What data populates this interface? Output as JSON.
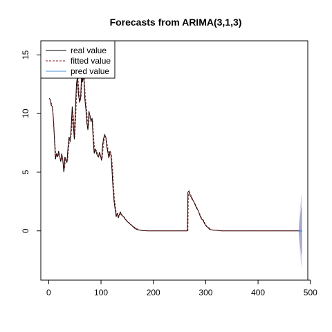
{
  "chart_data": {
    "type": "line",
    "title": "Forecasts from ARIMA(3,1,3)",
    "xlabel": "",
    "ylabel": "",
    "xlim": [
      -15,
      495
    ],
    "ylim": [
      -4.2,
      16.2
    ],
    "xticks": [
      0,
      100,
      200,
      300,
      400,
      500
    ],
    "yticks": [
      0,
      5,
      10,
      15
    ],
    "legend": {
      "position": "top-left",
      "entries": [
        {
          "label": "real value",
          "color": "#000000",
          "style": "solid"
        },
        {
          "label": "fitted value",
          "color": "#8b1a1a",
          "style": "dashed"
        },
        {
          "label": "pred value",
          "color": "#4a90d9",
          "style": "solid"
        }
      ]
    },
    "series": [
      {
        "name": "real value",
        "color": "#000000",
        "x": [
          1,
          3,
          5,
          7,
          9,
          11,
          13,
          15,
          17,
          19,
          21,
          23,
          25,
          27,
          29,
          31,
          33,
          35,
          37,
          39,
          41,
          43,
          45,
          47,
          49,
          51,
          53,
          55,
          57,
          59,
          61,
          63,
          65,
          67,
          69,
          71,
          73,
          75,
          77,
          79,
          81,
          83,
          85,
          87,
          89,
          91,
          93,
          95,
          97,
          99,
          101,
          103,
          105,
          107,
          109,
          111,
          113,
          115,
          117,
          119,
          121,
          123,
          125,
          127,
          129,
          131,
          133,
          135,
          137,
          140,
          143,
          146,
          150,
          155,
          160,
          165,
          170,
          175,
          180,
          190,
          200,
          210,
          220,
          230,
          240,
          250,
          260,
          265,
          266,
          268,
          270,
          272,
          274,
          276,
          278,
          280,
          283,
          286,
          289,
          292,
          295,
          298,
          301,
          304,
          307,
          310,
          315,
          320,
          330,
          340,
          350,
          360,
          370,
          380,
          390,
          400,
          410,
          420,
          430,
          440,
          450,
          460,
          470,
          478
        ],
        "y": [
          11.3,
          11.2,
          10.7,
          10.6,
          9.5,
          7.8,
          6.1,
          6.6,
          6.3,
          6.8,
          6.4,
          5.9,
          6.6,
          6.0,
          5.0,
          6.3,
          6.1,
          5.8,
          7.2,
          8.0,
          7.6,
          8.8,
          10.6,
          9.2,
          7.8,
          10.3,
          12.5,
          13.2,
          11.6,
          11.0,
          11.2,
          13.5,
          12.7,
          13.4,
          11.3,
          10.4,
          9.2,
          8.6,
          10.2,
          9.8,
          9.3,
          9.6,
          7.8,
          6.6,
          7.0,
          6.7,
          6.4,
          6.3,
          6.7,
          6.4,
          6.0,
          7.3,
          7.9,
          8.2,
          8.0,
          7.2,
          6.7,
          6.2,
          6.8,
          6.5,
          5.2,
          3.6,
          2.5,
          1.8,
          1.2,
          1.5,
          1.1,
          1.4,
          1.6,
          1.3,
          1.2,
          1.0,
          0.8,
          0.6,
          0.4,
          0.2,
          0.1,
          0.05,
          0.02,
          0.0,
          0.0,
          0.0,
          0.0,
          0.0,
          0.0,
          0.0,
          0.0,
          0.0,
          3.3,
          3.4,
          3.0,
          2.9,
          2.7,
          2.6,
          2.4,
          2.2,
          1.9,
          1.7,
          1.3,
          1.0,
          0.9,
          0.6,
          0.4,
          0.3,
          0.15,
          0.1,
          0.05,
          0.05,
          0.0,
          0.0,
          0.0,
          0.0,
          0.0,
          0.0,
          0.0,
          0.0,
          0.0,
          0.0,
          0.0,
          0.0,
          0.0,
          0.0,
          0.0,
          0.0
        ]
      },
      {
        "name": "fitted value",
        "color": "#8b1a1a",
        "x": [
          2,
          4,
          6,
          8,
          10,
          12,
          14,
          16,
          18,
          20,
          22,
          24,
          26,
          28,
          30,
          32,
          34,
          36,
          38,
          40,
          42,
          44,
          46,
          48,
          50,
          52,
          54,
          56,
          58,
          60,
          62,
          64,
          66,
          68,
          70,
          72,
          74,
          76,
          78,
          80,
          82,
          84,
          86,
          88,
          90,
          92,
          94,
          96,
          98,
          100,
          102,
          104,
          106,
          108,
          110,
          112,
          114,
          116,
          118,
          120,
          122,
          124,
          126,
          128,
          130,
          132,
          134,
          136,
          138,
          141,
          144,
          147,
          151,
          156,
          161,
          166,
          171,
          176,
          181,
          191,
          201,
          211,
          221,
          231,
          241,
          251,
          261,
          266,
          267,
          269,
          271,
          273,
          275,
          277,
          279,
          281,
          284,
          287,
          290,
          293,
          296,
          299,
          302,
          305,
          308,
          311,
          316,
          321,
          331,
          341,
          351,
          361,
          371,
          381,
          391,
          401,
          411,
          421,
          431,
          441,
          451,
          461,
          471,
          478
        ],
        "y": [
          11.2,
          11.0,
          10.8,
          10.4,
          9.0,
          7.5,
          6.3,
          6.5,
          6.4,
          6.6,
          6.2,
          6.0,
          6.4,
          5.8,
          5.2,
          6.1,
          6.0,
          6.0,
          7.0,
          7.8,
          7.8,
          8.6,
          10.2,
          9.4,
          8.0,
          10.0,
          12.2,
          13.0,
          11.8,
          11.1,
          11.4,
          13.2,
          12.9,
          13.1,
          11.5,
          10.6,
          9.4,
          8.8,
          10.0,
          9.7,
          9.4,
          9.4,
          8.0,
          6.8,
          6.9,
          6.8,
          6.5,
          6.4,
          6.6,
          6.3,
          6.1,
          7.1,
          7.8,
          8.1,
          7.9,
          7.3,
          6.8,
          6.3,
          6.7,
          6.4,
          5.4,
          3.8,
          2.6,
          1.9,
          1.3,
          1.5,
          1.2,
          1.3,
          1.5,
          1.3,
          1.2,
          1.0,
          0.8,
          0.6,
          0.4,
          0.25,
          0.12,
          0.06,
          0.03,
          0.0,
          0.0,
          0.0,
          0.0,
          0.0,
          0.0,
          0.0,
          0.0,
          0.0,
          3.1,
          3.3,
          3.1,
          2.9,
          2.7,
          2.5,
          2.4,
          2.2,
          1.9,
          1.6,
          1.3,
          1.0,
          0.9,
          0.6,
          0.4,
          0.3,
          0.2,
          0.1,
          0.05,
          0.05,
          0.0,
          0.0,
          0.0,
          0.0,
          0.0,
          0.0,
          0.0,
          0.0,
          0.0,
          0.0,
          0.0,
          0.0,
          0.0,
          0.0,
          0.0,
          0.0
        ]
      },
      {
        "name": "pred value",
        "color": "#4a90d9",
        "x": [
          478,
          480,
          482,
          484
        ],
        "y": [
          0.0,
          0.0,
          0.0,
          0.0
        ]
      }
    ],
    "intervals": [
      {
        "level": 95,
        "color": "#d8d8e8",
        "x": [
          478,
          479,
          480,
          481,
          482,
          483,
          484
        ],
        "lower": [
          -0.3,
          -1.2,
          -1.8,
          -2.3,
          -2.7,
          -3.0,
          -3.2
        ],
        "upper": [
          0.3,
          1.2,
          1.8,
          2.3,
          2.7,
          3.0,
          3.2
        ]
      },
      {
        "level": 80,
        "color": "#a8a8cc",
        "x": [
          478,
          479,
          480,
          481,
          482,
          483,
          484
        ],
        "lower": [
          -0.2,
          -0.8,
          -1.2,
          -1.5,
          -1.8,
          -2.0,
          -2.1
        ],
        "upper": [
          0.2,
          0.8,
          1.2,
          1.5,
          1.8,
          2.0,
          2.1
        ]
      }
    ]
  }
}
